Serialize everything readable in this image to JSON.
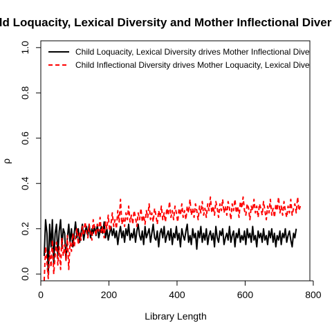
{
  "chart_data": {
    "type": "line",
    "title": "Child Loquacity, Lexical Diversity and Mother Inflectional Diversity",
    "xlabel": "Library Length",
    "ylabel": "ρ",
    "xlim": [
      0,
      790
    ],
    "ylim": [
      -0.03,
      1.03
    ],
    "x_ticks": [
      0,
      200,
      400,
      600,
      800
    ],
    "y_ticks": [
      0.0,
      0.2,
      0.4,
      0.6,
      0.8,
      1.0
    ],
    "x_tick_labels": [
      "0",
      "200",
      "400",
      "600",
      "800"
    ],
    "y_tick_labels": [
      "0.0",
      "0.2",
      "0.4",
      "0.6",
      "0.8",
      "1.0"
    ],
    "grid": false,
    "legend_position": "top-left",
    "x_start": 10,
    "x_step": 4,
    "series": [
      {
        "name": "Child Loquacity, Lexical Diversity drives Mother Inflectional Diversity",
        "color": "#000000",
        "dash": "solid",
        "values": [
          0.08,
          0.24,
          0.18,
          0.0,
          0.22,
          0.12,
          0.24,
          0.05,
          0.18,
          0.22,
          0.08,
          0.19,
          0.24,
          0.12,
          0.2,
          0.18,
          0.06,
          0.16,
          0.22,
          0.14,
          0.2,
          0.12,
          0.18,
          0.23,
          0.16,
          0.2,
          0.14,
          0.18,
          0.22,
          0.15,
          0.19,
          0.21,
          0.17,
          0.22,
          0.16,
          0.2,
          0.18,
          0.21,
          0.17,
          0.22,
          0.16,
          0.19,
          0.21,
          0.18,
          0.23,
          0.16,
          0.2,
          0.15,
          0.18,
          0.21,
          0.17,
          0.2,
          0.16,
          0.19,
          0.13,
          0.18,
          0.21,
          0.16,
          0.19,
          0.14,
          0.2,
          0.17,
          0.22,
          0.15,
          0.18,
          0.16,
          0.2,
          0.14,
          0.19,
          0.22,
          0.17,
          0.15,
          0.19,
          0.13,
          0.21,
          0.16,
          0.18,
          0.2,
          0.14,
          0.18,
          0.22,
          0.16,
          0.15,
          0.19,
          0.12,
          0.18,
          0.2,
          0.16,
          0.21,
          0.14,
          0.17,
          0.19,
          0.15,
          0.2,
          0.13,
          0.18,
          0.16,
          0.21,
          0.15,
          0.18,
          0.12,
          0.2,
          0.17,
          0.15,
          0.19,
          0.22,
          0.14,
          0.17,
          0.13,
          0.2,
          0.16,
          0.18,
          0.11,
          0.19,
          0.16,
          0.21,
          0.14,
          0.18,
          0.15,
          0.2,
          0.13,
          0.17,
          0.19,
          0.15,
          0.18,
          0.12,
          0.21,
          0.16,
          0.14,
          0.19,
          0.17,
          0.2,
          0.13,
          0.16,
          0.18,
          0.15,
          0.21,
          0.14,
          0.17,
          0.19,
          0.12,
          0.18,
          0.16,
          0.2,
          0.14,
          0.17,
          0.15,
          0.19,
          0.13,
          0.2,
          0.16,
          0.18,
          0.14,
          0.21,
          0.15,
          0.17,
          0.12,
          0.19,
          0.16,
          0.18,
          0.14,
          0.2,
          0.15,
          0.17,
          0.13,
          0.19,
          0.16,
          0.2,
          0.14,
          0.18,
          0.12,
          0.17,
          0.15,
          0.19,
          0.13,
          0.18,
          0.16,
          0.2,
          0.14,
          0.17,
          0.19,
          0.15,
          0.12,
          0.18,
          0.16,
          0.2
        ]
      },
      {
        "name": "Child Inflectional Diversity drives Mother Loquacity, Lexical Diversity",
        "color": "#ff0000",
        "dash": "dashed",
        "values": [
          -0.03,
          0.12,
          0.05,
          -0.02,
          0.1,
          0.03,
          0.15,
          0.0,
          0.08,
          0.14,
          0.04,
          0.12,
          0.02,
          0.16,
          0.08,
          0.13,
          0.06,
          0.17,
          0.02,
          0.14,
          0.1,
          0.18,
          0.12,
          0.16,
          0.2,
          0.13,
          0.18,
          0.15,
          0.21,
          0.17,
          0.23,
          0.19,
          0.16,
          0.22,
          0.18,
          0.15,
          0.24,
          0.2,
          0.17,
          0.22,
          0.19,
          0.25,
          0.18,
          0.21,
          0.16,
          0.23,
          0.2,
          0.26,
          0.19,
          0.22,
          0.27,
          0.21,
          0.24,
          0.2,
          0.28,
          0.23,
          0.33,
          0.22,
          0.25,
          0.21,
          0.27,
          0.24,
          0.3,
          0.23,
          0.26,
          0.22,
          0.28,
          0.25,
          0.21,
          0.27,
          0.24,
          0.29,
          0.23,
          0.26,
          0.22,
          0.28,
          0.25,
          0.31,
          0.24,
          0.27,
          0.23,
          0.29,
          0.26,
          0.22,
          0.28,
          0.25,
          0.3,
          0.24,
          0.27,
          0.23,
          0.29,
          0.26,
          0.32,
          0.25,
          0.28,
          0.24,
          0.3,
          0.27,
          0.23,
          0.29,
          0.26,
          0.31,
          0.25,
          0.28,
          0.24,
          0.3,
          0.27,
          0.33,
          0.26,
          0.29,
          0.25,
          0.31,
          0.28,
          0.24,
          0.3,
          0.27,
          0.32,
          0.26,
          0.29,
          0.25,
          0.31,
          0.28,
          0.34,
          0.27,
          0.3,
          0.26,
          0.32,
          0.29,
          0.25,
          0.31,
          0.28,
          0.33,
          0.27,
          0.3,
          0.26,
          0.32,
          0.29,
          0.24,
          0.31,
          0.28,
          0.33,
          0.27,
          0.3,
          0.25,
          0.32,
          0.29,
          0.34,
          0.28,
          0.26,
          0.31,
          0.29,
          0.24,
          0.3,
          0.28,
          0.33,
          0.27,
          0.3,
          0.25,
          0.31,
          0.29,
          0.26,
          0.32,
          0.28,
          0.24,
          0.3,
          0.27,
          0.33,
          0.26,
          0.29,
          0.25,
          0.31,
          0.28,
          0.34,
          0.27,
          0.3,
          0.26,
          0.32,
          0.28,
          0.25,
          0.3,
          0.27,
          0.33,
          0.26,
          0.29,
          0.31,
          0.27,
          0.34,
          0.28,
          0.3
        ]
      }
    ]
  }
}
